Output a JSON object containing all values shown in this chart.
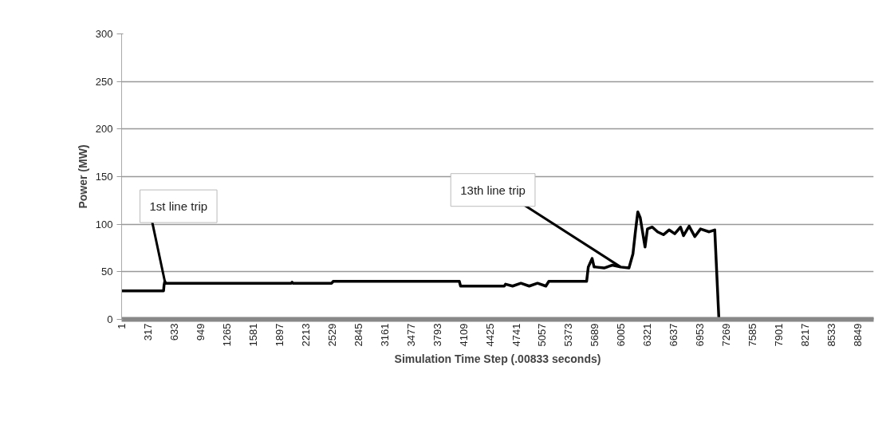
{
  "chart_data": {
    "type": "line",
    "xlabel": "Simulation Time Step (.00833 seconds)",
    "ylabel": "Power (MW)",
    "x": [
      1,
      505,
      511,
      520,
      530,
      2040,
      2050,
      2060,
      2525,
      2545,
      4060,
      4075,
      4600,
      4616,
      4700,
      4800,
      4900,
      5000,
      5100,
      5136,
      5590,
      5610,
      5656,
      5680,
      5700,
      5800,
      5900,
      6000,
      6099,
      6147,
      6176,
      6205,
      6234,
      6292,
      6321,
      6379,
      6443,
      6513,
      6581,
      6649,
      6719,
      6754,
      6822,
      6890,
      6959,
      7063,
      7130,
      7180,
      9040
    ],
    "series": [
      {
        "color": "#000000",
        "values": [
          30,
          30,
          36,
          40,
          38,
          38,
          39,
          38,
          38,
          40,
          40,
          35,
          35,
          37,
          35,
          38,
          35,
          38,
          35,
          40,
          40,
          55,
          64,
          55,
          55,
          54,
          57,
          55,
          54,
          69,
          92,
          113,
          107,
          76,
          95,
          97,
          92,
          89,
          94,
          90,
          97,
          88,
          98,
          87,
          95,
          92,
          94,
          0,
          0
        ]
      }
    ],
    "xlim": [
      1,
      9040
    ],
    "ylim": [
      0,
      300
    ],
    "xticks": [
      1,
      317,
      633,
      949,
      1265,
      1581,
      1897,
      2213,
      2529,
      2845,
      3161,
      3477,
      3793,
      4109,
      4425,
      4741,
      5057,
      5373,
      5689,
      6005,
      6321,
      6637,
      6953,
      7269,
      7585,
      7901,
      8217,
      8533,
      8849
    ],
    "yticks": [
      0,
      50,
      100,
      150,
      200,
      250,
      300
    ],
    "grid": "y",
    "marker": "none",
    "line_style": "solid",
    "annotations": [
      {
        "text": "1st line trip",
        "x": 520,
        "y": 40
      },
      {
        "text": "13th line trip",
        "x": 6000,
        "y": 55
      }
    ]
  }
}
